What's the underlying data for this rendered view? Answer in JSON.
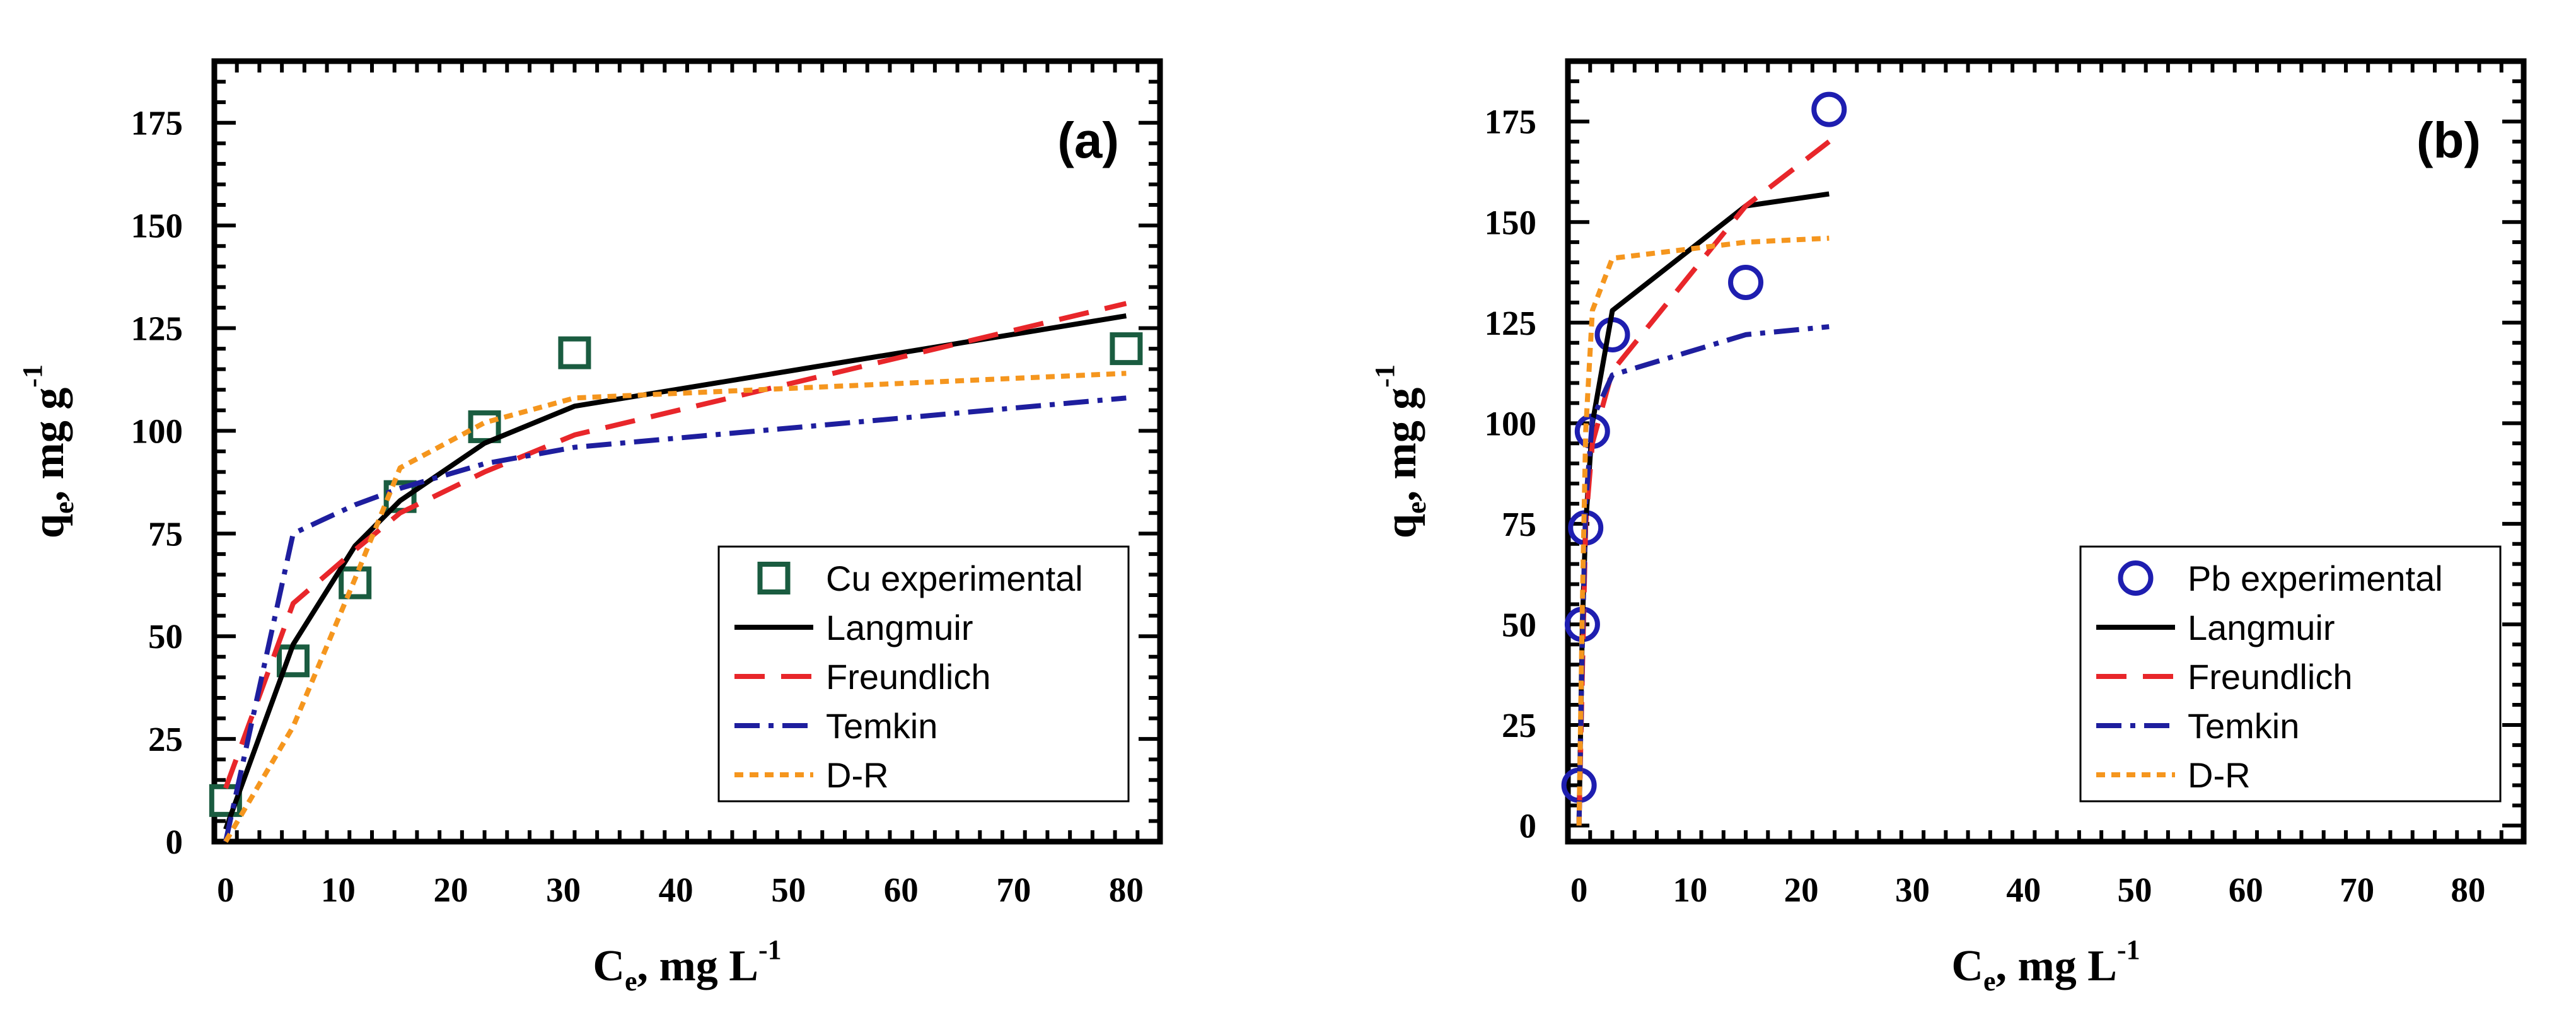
{
  "chart_data": [
    {
      "type": "scatter",
      "panel_label": "(a)",
      "xlabel": "C",
      "xlabel_sub": "e",
      "xlabel_unit": ", mg L",
      "xlabel_sup": "-1",
      "ylabel": "q",
      "ylabel_sub": "e",
      "ylabel_unit": ", mg g",
      "ylabel_sup": "-1",
      "xlim": [
        -1,
        83
      ],
      "ylim": [
        0,
        190
      ],
      "xticks": [
        0,
        10,
        20,
        30,
        40,
        50,
        60,
        70,
        80
      ],
      "yticks": [
        0,
        25,
        50,
        75,
        100,
        125,
        150,
        175
      ],
      "legend_position": "bottom-right",
      "series": [
        {
          "name": "Cu experimental",
          "kind": "marker",
          "marker": "square",
          "color": "#1a5c40",
          "x": [
            0,
            6,
            11.5,
            15.5,
            23,
            31,
            80
          ],
          "y": [
            10,
            44,
            63,
            84,
            101,
            119,
            120
          ]
        },
        {
          "name": "Langmuir",
          "kind": "line",
          "dash": "solid",
          "color": "#000000",
          "x": [
            0,
            6,
            11.5,
            15.5,
            23,
            31,
            80
          ],
          "y": [
            3,
            48,
            72,
            83,
            97,
            106,
            128
          ]
        },
        {
          "name": "Freundlich",
          "kind": "line",
          "dash": "dashed",
          "color": "#e8262a",
          "x": [
            0,
            6,
            11.5,
            15.5,
            23,
            31,
            80
          ],
          "y": [
            13,
            58,
            71,
            80,
            90,
            99,
            131
          ]
        },
        {
          "name": "Temkin",
          "kind": "line",
          "dash": "dashdot",
          "color": "#1e1e9e",
          "x": [
            0,
            6,
            11.5,
            15.5,
            23,
            31,
            80
          ],
          "y": [
            0,
            75,
            82,
            86,
            92,
            96,
            108
          ]
        },
        {
          "name": "D-R",
          "kind": "line",
          "dash": "dotted",
          "color": "#f5961e",
          "x": [
            0,
            6,
            11.5,
            15.5,
            23,
            31,
            80
          ],
          "y": [
            0,
            28,
            64,
            91,
            102,
            108,
            114
          ]
        }
      ]
    },
    {
      "type": "scatter",
      "panel_label": "(b)",
      "xlabel": "C",
      "xlabel_sub": "e",
      "xlabel_unit": ", mg L",
      "xlabel_sup": "-1",
      "ylabel": "q",
      "ylabel_sub": "e",
      "ylabel_unit": ", mg g",
      "ylabel_sup": "-1",
      "xlim": [
        -1,
        85
      ],
      "ylim": [
        -4,
        190
      ],
      "xticks": [
        0,
        10,
        20,
        30,
        40,
        50,
        60,
        70,
        80
      ],
      "yticks": [
        0,
        25,
        50,
        75,
        100,
        125,
        150,
        175
      ],
      "legend_position": "bottom-right",
      "series": [
        {
          "name": "Pb experimental",
          "kind": "marker",
          "marker": "circle",
          "color": "#1e1eb0",
          "x": [
            0,
            0.3,
            0.6,
            1.2,
            3,
            15,
            22.5
          ],
          "y": [
            10,
            50,
            74,
            98,
            122,
            135,
            178
          ]
        },
        {
          "name": "Langmuir",
          "kind": "line",
          "dash": "solid",
          "color": "#000000",
          "x": [
            0,
            0.3,
            0.6,
            1.2,
            3,
            15,
            22.5
          ],
          "y": [
            0,
            50,
            75,
            100,
            128,
            154,
            157
          ]
        },
        {
          "name": "Freundlich",
          "kind": "line",
          "dash": "dashed",
          "color": "#e8262a",
          "x": [
            0,
            0.3,
            0.6,
            1.2,
            3,
            15,
            22.5
          ],
          "y": [
            0,
            38,
            75,
            95,
            113,
            154,
            170
          ]
        },
        {
          "name": "Temkin",
          "kind": "line",
          "dash": "dashdot",
          "color": "#1e1e9e",
          "x": [
            0,
            0.3,
            0.6,
            1.2,
            3,
            15,
            22.5
          ],
          "y": [
            0,
            45,
            80,
            101,
            112,
            122,
            124
          ]
        },
        {
          "name": "D-R",
          "kind": "line",
          "dash": "dotted",
          "color": "#f5961e",
          "x": [
            0,
            0.3,
            0.6,
            1.2,
            3,
            15,
            22.5
          ],
          "y": [
            0,
            55,
            98,
            128,
            141,
            145,
            146
          ]
        }
      ]
    }
  ]
}
